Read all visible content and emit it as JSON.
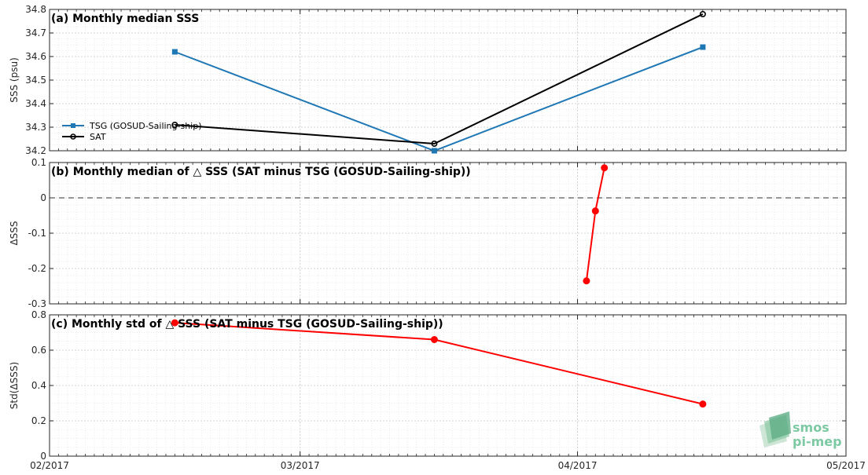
{
  "chart_data": [
    {
      "type": "line",
      "title": "(a) Monthly median SSS",
      "ylabel": "SSS (psu)",
      "ylim": [
        34.2,
        34.8
      ],
      "yticks": [
        34.2,
        34.3,
        34.4,
        34.5,
        34.6,
        34.7,
        34.8
      ],
      "grid": true,
      "legend_position": "bottom-left",
      "series": [
        {
          "name": "TSG (GOSUD-Sailing-ship)",
          "color": "#1f77b4",
          "marker": "square",
          "x": [
            "2017-02-15",
            "2017-03-16",
            "2017-04-15"
          ],
          "y": [
            34.62,
            34.2,
            34.64
          ]
        },
        {
          "name": "SAT",
          "color": "#000000",
          "marker": "circle",
          "x": [
            "2017-02-15",
            "2017-03-16",
            "2017-04-15"
          ],
          "y": [
            34.31,
            34.23,
            34.78
          ]
        }
      ]
    },
    {
      "type": "line",
      "title": "(b) Monthly median of △ SSS (SAT minus TSG (GOSUD-Sailing-ship))",
      "ylabel": "ΔSSS",
      "ylim": [
        -0.3,
        0.1
      ],
      "yticks": [
        -0.3,
        -0.2,
        -0.1,
        0,
        0.1
      ],
      "yticklabels": [
        "-0.3",
        "-0.2",
        "-0.1",
        "0",
        "0.1"
      ],
      "zero_line": true,
      "grid": true,
      "series": [
        {
          "color": "#ff0000",
          "marker": "circle",
          "x": [
            "2017-04-02",
            "2017-04-03",
            "2017-04-04"
          ],
          "y": [
            -0.235,
            -0.037,
            0.085
          ]
        }
      ]
    },
    {
      "type": "line",
      "title": "(c) Monthly std of △ SSS (SAT minus TSG (GOSUD-Sailing-ship))",
      "ylabel": "Std(ΔSSS)",
      "ylim": [
        0,
        0.8
      ],
      "yticks": [
        0,
        0.2,
        0.4,
        0.6,
        0.8
      ],
      "yticklabels": [
        "0",
        "0.2",
        "0.4",
        "0.6",
        "0.8"
      ],
      "grid": true,
      "series": [
        {
          "color": "#ff0000",
          "marker": "circle",
          "x": [
            "2017-02-15",
            "2017-03-16",
            "2017-04-15"
          ],
          "y": [
            0.755,
            0.66,
            0.295
          ]
        }
      ]
    }
  ],
  "xaxis": {
    "range": [
      "2017-02-01",
      "2017-05-01"
    ],
    "ticks": [
      "2017-02-01",
      "2017-03-01",
      "2017-04-01",
      "2017-05-01"
    ],
    "ticklabels": [
      "02/2017",
      "03/2017",
      "04/2017",
      "05/2017"
    ]
  },
  "logo": {
    "line1": "smos",
    "line2": "pi-mep"
  }
}
